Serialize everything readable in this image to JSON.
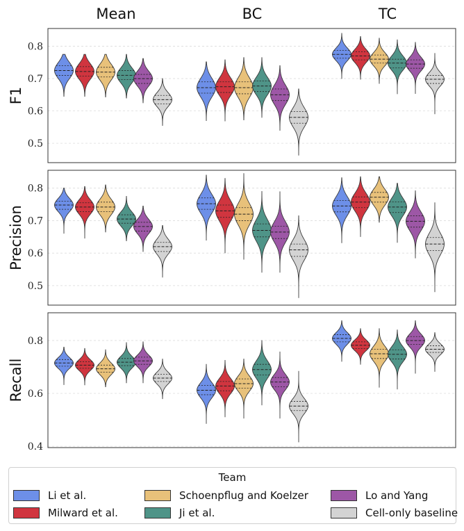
{
  "chart_data": {
    "type": "violin",
    "columns": [
      "Mean",
      "BC",
      "TC"
    ],
    "legend": {
      "title": "Team",
      "entries": [
        {
          "name": "Li et al.",
          "color": "#6d8fe8"
        },
        {
          "name": "Milward et al.",
          "color": "#d0353f"
        },
        {
          "name": "Schoenpflug and Koelzer",
          "color": "#e8c17a"
        },
        {
          "name": "Ji et al.",
          "color": "#4f9488"
        },
        {
          "name": "Lo and Yang",
          "color": "#9d57a6"
        },
        {
          "name": "Cell-only baseline",
          "color": "#d3d3d3"
        }
      ]
    },
    "rows": [
      {
        "metric": "F1",
        "ylim": [
          0.44,
          0.855
        ],
        "yticks": [
          "0.5",
          "0.6",
          "0.7",
          "0.8"
        ],
        "ytick_values": [
          0.5,
          0.6,
          0.7,
          0.8
        ],
        "groups": {
          "Mean": [
            {
              "min": 0.645,
              "q1": 0.71,
              "median": 0.725,
              "q3": 0.74,
              "max": 0.775
            },
            {
              "min": 0.645,
              "q1": 0.708,
              "median": 0.722,
              "q3": 0.737,
              "max": 0.775
            },
            {
              "min": 0.643,
              "q1": 0.705,
              "median": 0.72,
              "q3": 0.735,
              "max": 0.775
            },
            {
              "min": 0.64,
              "q1": 0.697,
              "median": 0.71,
              "q3": 0.725,
              "max": 0.775
            },
            {
              "min": 0.625,
              "q1": 0.685,
              "median": 0.7,
              "q3": 0.713,
              "max": 0.762
            },
            {
              "min": 0.555,
              "q1": 0.622,
              "median": 0.635,
              "q3": 0.648,
              "max": 0.7
            }
          ],
          "BC": [
            {
              "min": 0.57,
              "q1": 0.655,
              "median": 0.672,
              "q3": 0.69,
              "max": 0.752
            },
            {
              "min": 0.568,
              "q1": 0.657,
              "median": 0.675,
              "q3": 0.69,
              "max": 0.758
            },
            {
              "min": 0.572,
              "q1": 0.653,
              "median": 0.672,
              "q3": 0.69,
              "max": 0.765
            },
            {
              "min": 0.58,
              "q1": 0.66,
              "median": 0.677,
              "q3": 0.693,
              "max": 0.765
            },
            {
              "min": 0.54,
              "q1": 0.632,
              "median": 0.65,
              "q3": 0.668,
              "max": 0.74
            },
            {
              "min": 0.462,
              "q1": 0.562,
              "median": 0.58,
              "q3": 0.598,
              "max": 0.668
            }
          ],
          "TC": [
            {
              "min": 0.7,
              "q1": 0.763,
              "median": 0.775,
              "q3": 0.787,
              "max": 0.84
            },
            {
              "min": 0.698,
              "q1": 0.758,
              "median": 0.77,
              "q3": 0.783,
              "max": 0.83
            },
            {
              "min": 0.685,
              "q1": 0.748,
              "median": 0.76,
              "q3": 0.773,
              "max": 0.825
            },
            {
              "min": 0.652,
              "q1": 0.733,
              "median": 0.748,
              "q3": 0.76,
              "max": 0.82
            },
            {
              "min": 0.653,
              "q1": 0.732,
              "median": 0.745,
              "q3": 0.758,
              "max": 0.812
            },
            {
              "min": 0.59,
              "q1": 0.685,
              "median": 0.698,
              "q3": 0.71,
              "max": 0.778
            }
          ]
        }
      },
      {
        "metric": "Precision",
        "ylim": [
          0.44,
          0.855
        ],
        "yticks": [
          "0.5",
          "0.6",
          "0.7",
          "0.8"
        ],
        "ytick_values": [
          0.5,
          0.6,
          0.7,
          0.8
        ],
        "groups": {
          "Mean": [
            {
              "min": 0.66,
              "q1": 0.735,
              "median": 0.748,
              "q3": 0.76,
              "max": 0.8
            },
            {
              "min": 0.645,
              "q1": 0.728,
              "median": 0.742,
              "q3": 0.755,
              "max": 0.805
            },
            {
              "min": 0.665,
              "q1": 0.728,
              "median": 0.742,
              "q3": 0.757,
              "max": 0.81
            },
            {
              "min": 0.638,
              "q1": 0.692,
              "median": 0.705,
              "q3": 0.718,
              "max": 0.775
            },
            {
              "min": 0.605,
              "q1": 0.668,
              "median": 0.682,
              "q3": 0.695,
              "max": 0.745
            },
            {
              "min": 0.525,
              "q1": 0.605,
              "median": 0.62,
              "q3": 0.633,
              "max": 0.685
            }
          ],
          "BC": [
            {
              "min": 0.64,
              "q1": 0.735,
              "median": 0.752,
              "q3": 0.77,
              "max": 0.84
            },
            {
              "min": 0.6,
              "q1": 0.71,
              "median": 0.73,
              "q3": 0.748,
              "max": 0.83
            },
            {
              "min": 0.58,
              "q1": 0.7,
              "median": 0.72,
              "q3": 0.74,
              "max": 0.845
            },
            {
              "min": 0.54,
              "q1": 0.65,
              "median": 0.67,
              "q3": 0.69,
              "max": 0.79
            },
            {
              "min": 0.54,
              "q1": 0.645,
              "median": 0.665,
              "q3": 0.683,
              "max": 0.79
            },
            {
              "min": 0.462,
              "q1": 0.59,
              "median": 0.61,
              "q3": 0.628,
              "max": 0.715
            }
          ],
          "TC": [
            {
              "min": 0.632,
              "q1": 0.727,
              "median": 0.745,
              "q3": 0.762,
              "max": 0.832
            },
            {
              "min": 0.65,
              "q1": 0.74,
              "median": 0.757,
              "q3": 0.773,
              "max": 0.835
            },
            {
              "min": 0.695,
              "q1": 0.757,
              "median": 0.772,
              "q3": 0.787,
              "max": 0.835
            },
            {
              "min": 0.632,
              "q1": 0.725,
              "median": 0.742,
              "q3": 0.758,
              "max": 0.815
            },
            {
              "min": 0.585,
              "q1": 0.68,
              "median": 0.698,
              "q3": 0.715,
              "max": 0.792
            },
            {
              "min": 0.48,
              "q1": 0.608,
              "median": 0.628,
              "q3": 0.648,
              "max": 0.755
            }
          ]
        }
      },
      {
        "metric": "Recall",
        "ylim": [
          0.395,
          0.905
        ],
        "yticks": [
          "0.4",
          "0.6",
          "0.8"
        ],
        "ytick_values": [
          0.4,
          0.6,
          0.8
        ],
        "groups": {
          "Mean": [
            {
              "min": 0.632,
              "q1": 0.703,
              "median": 0.715,
              "q3": 0.728,
              "max": 0.775
            },
            {
              "min": 0.632,
              "q1": 0.695,
              "median": 0.707,
              "q3": 0.72,
              "max": 0.77
            },
            {
              "min": 0.625,
              "q1": 0.68,
              "median": 0.693,
              "q3": 0.707,
              "max": 0.765
            },
            {
              "min": 0.64,
              "q1": 0.705,
              "median": 0.718,
              "q3": 0.732,
              "max": 0.792
            },
            {
              "min": 0.64,
              "q1": 0.71,
              "median": 0.723,
              "q3": 0.737,
              "max": 0.795
            },
            {
              "min": 0.58,
              "q1": 0.645,
              "median": 0.658,
              "q3": 0.672,
              "max": 0.73
            }
          ],
          "BC": [
            {
              "min": 0.485,
              "q1": 0.595,
              "median": 0.612,
              "q3": 0.63,
              "max": 0.71
            },
            {
              "min": 0.51,
              "q1": 0.61,
              "median": 0.628,
              "q3": 0.645,
              "max": 0.725
            },
            {
              "min": 0.505,
              "q1": 0.62,
              "median": 0.637,
              "q3": 0.655,
              "max": 0.73
            },
            {
              "min": 0.555,
              "q1": 0.67,
              "median": 0.69,
              "q3": 0.71,
              "max": 0.8
            },
            {
              "min": 0.505,
              "q1": 0.625,
              "median": 0.643,
              "q3": 0.66,
              "max": 0.758
            },
            {
              "min": 0.415,
              "q1": 0.535,
              "median": 0.552,
              "q3": 0.57,
              "max": 0.685
            }
          ],
          "TC": [
            {
              "min": 0.72,
              "q1": 0.795,
              "median": 0.808,
              "q3": 0.822,
              "max": 0.875
            },
            {
              "min": 0.71,
              "q1": 0.77,
              "median": 0.782,
              "q3": 0.795,
              "max": 0.845
            },
            {
              "min": 0.622,
              "q1": 0.732,
              "median": 0.75,
              "q3": 0.767,
              "max": 0.845
            },
            {
              "min": 0.615,
              "q1": 0.73,
              "median": 0.748,
              "q3": 0.765,
              "max": 0.84
            },
            {
              "min": 0.675,
              "q1": 0.785,
              "median": 0.8,
              "q3": 0.815,
              "max": 0.875
            },
            {
              "min": 0.682,
              "q1": 0.755,
              "median": 0.767,
              "q3": 0.78,
              "max": 0.83
            }
          ]
        }
      }
    ]
  }
}
